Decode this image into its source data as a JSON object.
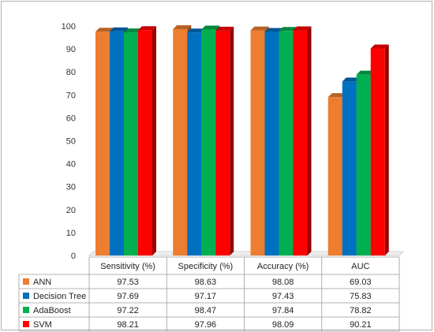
{
  "chart_data": {
    "type": "bar",
    "categories": [
      "Sensitivity (%)",
      "Specificity (%)",
      "Accuracy (%)",
      "AUC"
    ],
    "series": [
      {
        "name": "ANN",
        "color": "#ED7D31",
        "values": [
          97.53,
          98.63,
          98.08,
          69.03
        ]
      },
      {
        "name": "Decision Tree",
        "color": "#0070C0",
        "values": [
          97.69,
          97.17,
          97.43,
          75.83
        ]
      },
      {
        "name": "AdaBoost",
        "color": "#00B050",
        "values": [
          97.22,
          98.47,
          97.84,
          78.82
        ]
      },
      {
        "name": "SVM",
        "color": "#FF0000",
        "values": [
          98.21,
          97.96,
          98.09,
          90.21
        ]
      }
    ],
    "table_values": [
      [
        "97.53",
        "98.63",
        "98.08",
        "69.03"
      ],
      [
        "97.69",
        "97.17",
        "97.43",
        "75.83"
      ],
      [
        "97.22",
        "98.47",
        "97.84",
        "78.82"
      ],
      [
        "98.21",
        "97.96",
        "98.09",
        "90.21"
      ]
    ],
    "yticks": [
      "0",
      "10",
      "20",
      "30",
      "40",
      "50",
      "60",
      "70",
      "80",
      "90",
      "100"
    ],
    "ylim": [
      0,
      100
    ],
    "grid": false,
    "legend": "data-table"
  }
}
